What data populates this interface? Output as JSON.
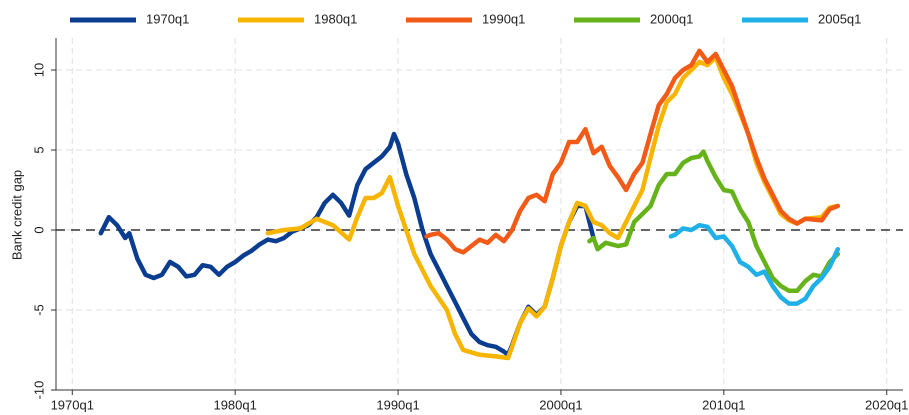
{
  "chart_data": {
    "type": "line",
    "y_label": "Bank credit gap",
    "xlim": [
      1969,
      2021
    ],
    "ylim": [
      -10,
      12
    ],
    "grid": true,
    "reference_line": 0,
    "legend": "top",
    "xticks": [
      {
        "value": 1970,
        "label": "1970q1"
      },
      {
        "value": 1980,
        "label": "1980q1"
      },
      {
        "value": 1990,
        "label": "1990q1"
      },
      {
        "value": 2000,
        "label": "2000q1"
      },
      {
        "value": 2010,
        "label": "2010q1"
      },
      {
        "value": 2020,
        "label": "2020q1"
      }
    ],
    "yticks": [
      -10,
      -5,
      0,
      5,
      10
    ],
    "series": [
      {
        "name": "1970q1",
        "color": "#0a3d8f",
        "x": [
          1971.75,
          1972.25,
          1972.75,
          1973.25,
          1973.5,
          1974,
          1974.5,
          1975,
          1975.5,
          1976,
          1976.5,
          1977,
          1977.5,
          1978,
          1978.5,
          1979,
          1979.5,
          1980,
          1980.5,
          1981,
          1981.5,
          1982,
          1982.5,
          1983,
          1983.5,
          1984,
          1984.5,
          1985,
          1985.5,
          1986,
          1986.5,
          1987,
          1987.5,
          1988,
          1988.5,
          1989,
          1989.5,
          1989.75,
          1990,
          1990.5,
          1991,
          1991.5,
          1992,
          1992.5,
          1993,
          1993.5,
          1994,
          1994.5,
          1995,
          1995.5,
          1996,
          1996.5,
          1996.75,
          1997,
          1997.5,
          1998,
          1998.5,
          1999,
          1999.5,
          2000,
          2000.5,
          2001,
          2001.5,
          2002
        ],
        "values": [
          -0.2,
          0.8,
          0.3,
          -0.5,
          -0.2,
          -1.8,
          -2.8,
          -3,
          -2.8,
          -2,
          -2.3,
          -2.9,
          -2.8,
          -2.2,
          -2.3,
          -2.8,
          -2.3,
          -2,
          -1.6,
          -1.3,
          -0.9,
          -0.6,
          -0.7,
          -0.5,
          -0.1,
          0.1,
          0.3,
          0.8,
          1.7,
          2.2,
          1.7,
          0.9,
          2.8,
          3.8,
          4.2,
          4.6,
          5.2,
          6,
          5.4,
          3.5,
          2,
          0,
          -1.5,
          -2.5,
          -3.5,
          -4.5,
          -5.5,
          -6.5,
          -7,
          -7.2,
          -7.3,
          -7.6,
          -7.8,
          -7.2,
          -5.8,
          -4.8,
          -5.3,
          -4.8,
          -3,
          -1,
          0.5,
          1.5,
          1.5,
          -0.5
        ]
      },
      {
        "name": "1980q1",
        "color": "#f7b500",
        "x": [
          1982,
          1983,
          1984,
          1985,
          1986,
          1987,
          1987.5,
          1988,
          1988.5,
          1989,
          1989.5,
          1990,
          1990.5,
          1991,
          1991.5,
          1992,
          1993,
          1993.5,
          1994,
          1995,
          1996,
          1996.75,
          1997,
          1997.5,
          1998,
          1998.5,
          1999,
          1999.5,
          2000,
          2000.5,
          2001,
          2001.5,
          2002,
          2002.5,
          2003,
          2003.5,
          2004,
          2004.5,
          2005,
          2005.5,
          2006,
          2006.5,
          2007,
          2007.5,
          2008,
          2008.5,
          2009,
          2009.5,
          2010,
          2010.5,
          2011,
          2011.5,
          2012,
          2012.5,
          2013,
          2013.5,
          2014,
          2014.5,
          2015,
          2016,
          2016.5,
          2017
        ],
        "values": [
          -0.2,
          0,
          0.1,
          0.7,
          0.3,
          -0.6,
          0.8,
          2,
          2,
          2.3,
          3.3,
          1.5,
          0,
          -1.5,
          -2.5,
          -3.5,
          -5,
          -6.5,
          -7.5,
          -7.8,
          -7.9,
          -8,
          -7.3,
          -5.8,
          -4.9,
          -5.4,
          -4.8,
          -3,
          -1,
          0.5,
          1.7,
          1.5,
          0.5,
          0.3,
          -0.2,
          -0.5,
          0.5,
          1.5,
          2.5,
          4.5,
          6.5,
          8,
          8.5,
          9.5,
          10,
          10.5,
          10.3,
          10.8,
          9.5,
          8.5,
          7.3,
          6,
          4.2,
          3,
          2,
          1,
          0.6,
          0.4,
          0.7,
          0.8,
          1.4,
          1.5
        ]
      },
      {
        "name": "1990q1",
        "color": "#f25a17",
        "x": [
          1991.75,
          1992,
          1992.5,
          1993,
          1993.5,
          1994,
          1994.5,
          1995,
          1995.5,
          1996,
          1996.5,
          1997,
          1997.5,
          1998,
          1998.5,
          1999,
          1999.5,
          2000,
          2000.5,
          2001,
          2001.5,
          2002,
          2002.5,
          2003,
          2003.5,
          2004,
          2004.5,
          2005,
          2005.5,
          2006,
          2006.5,
          2007,
          2007.5,
          2008,
          2008.5,
          2009,
          2009.5,
          2010,
          2010.5,
          2011,
          2011.5,
          2012,
          2012.5,
          2013,
          2013.5,
          2014,
          2014.5,
          2015,
          2016,
          2016.5,
          2017
        ],
        "values": [
          -0.4,
          -0.3,
          -0.2,
          -0.6,
          -1.2,
          -1.4,
          -1,
          -0.6,
          -0.8,
          -0.3,
          -0.7,
          0,
          1.2,
          2,
          2.2,
          1.8,
          3.5,
          4.2,
          5.5,
          5.5,
          6.3,
          4.8,
          5.2,
          4,
          3.3,
          2.5,
          3.5,
          4.2,
          6,
          7.8,
          8.5,
          9.5,
          10,
          10.3,
          11.2,
          10.5,
          11,
          10,
          9,
          7.5,
          6,
          4.5,
          3.2,
          2.2,
          1.2,
          0.7,
          0.4,
          0.7,
          0.6,
          1.3,
          1.5
        ]
      },
      {
        "name": "2000q1",
        "color": "#66b21b",
        "x": [
          2001.75,
          2002,
          2002.25,
          2002.75,
          2003.5,
          2004,
          2004.5,
          2005,
          2005.5,
          2006,
          2006.5,
          2007,
          2007.5,
          2008,
          2008.5,
          2008.75,
          2009,
          2009.5,
          2010,
          2010.5,
          2011,
          2011.5,
          2012,
          2012.5,
          2013,
          2013.5,
          2014,
          2014.5,
          2015,
          2015.5,
          2016,
          2016.5,
          2017
        ],
        "values": [
          -0.7,
          -0.5,
          -1.2,
          -0.8,
          -1,
          -0.9,
          0.5,
          1,
          1.5,
          2.8,
          3.5,
          3.5,
          4.2,
          4.5,
          4.6,
          4.9,
          4.3,
          3.3,
          2.5,
          2.4,
          1.3,
          0.5,
          -1,
          -2,
          -3,
          -3.5,
          -3.8,
          -3.8,
          -3.2,
          -2.8,
          -2.9,
          -2,
          -1.5
        ]
      },
      {
        "name": "2005q1",
        "color": "#1eb0e6",
        "x": [
          2006.75,
          2007,
          2007.5,
          2008,
          2008.5,
          2009,
          2009.5,
          2010,
          2010.5,
          2011,
          2011.5,
          2012,
          2012.5,
          2013,
          2013.5,
          2014,
          2014.5,
          2015,
          2015.5,
          2016,
          2016.5,
          2017
        ],
        "values": [
          -0.4,
          -0.3,
          0.1,
          0,
          0.3,
          0.2,
          -0.5,
          -0.4,
          -1,
          -2,
          -2.3,
          -2.8,
          -2.6,
          -3.5,
          -4.2,
          -4.6,
          -4.6,
          -4.3,
          -3.5,
          -3,
          -2.3,
          -1.2
        ]
      }
    ]
  }
}
